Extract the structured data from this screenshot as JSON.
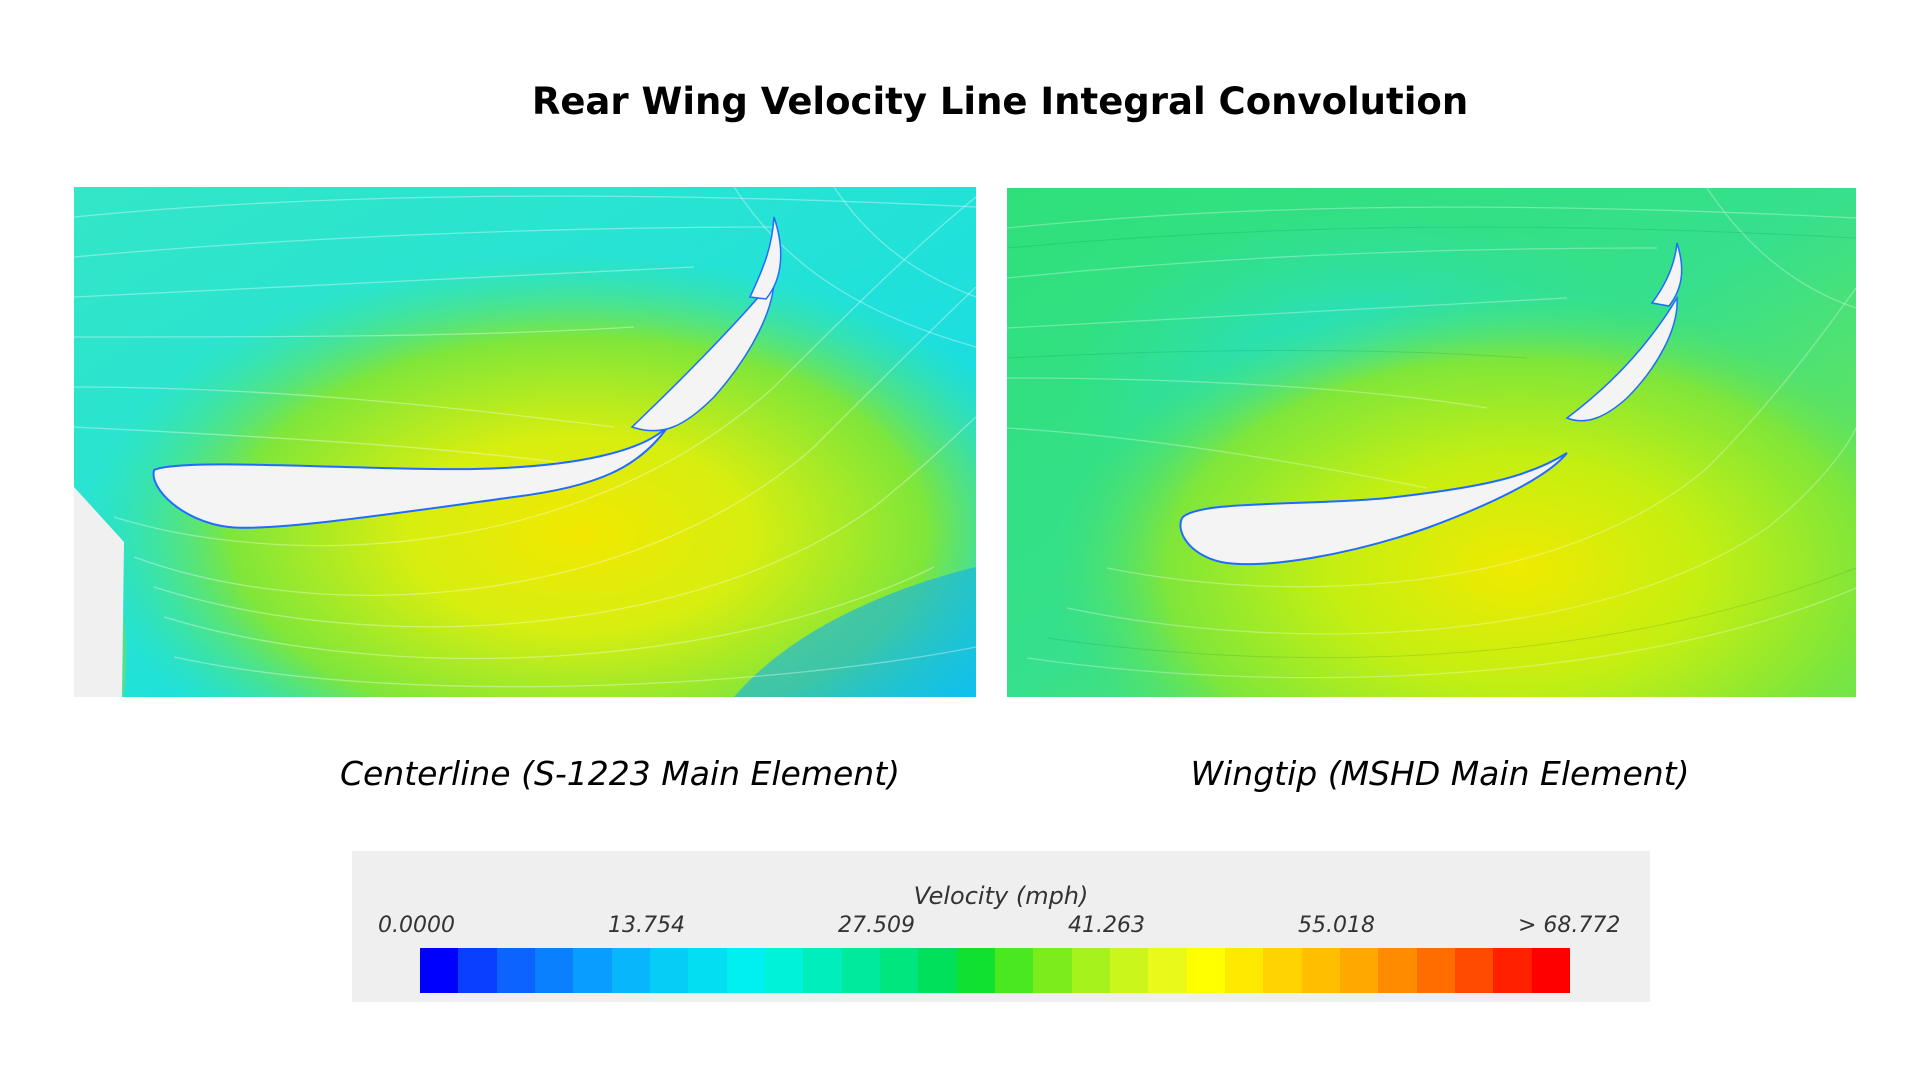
{
  "title": "Rear Wing Velocity Line Integral Convolution",
  "panels": [
    {
      "caption": "Centerline (S-1223 Main Element)"
    },
    {
      "caption": "Wingtip (MSHD Main Element)"
    }
  ],
  "legend": {
    "title": "Velocity (mph)",
    "ticks": [
      "0.0000",
      "13.754",
      "27.509",
      "41.263",
      "55.018",
      "> 68.772"
    ],
    "colors": [
      "#0000ff",
      "#0b3fff",
      "#0c63ff",
      "#0a80ff",
      "#099dff",
      "#08b6fb",
      "#05cef6",
      "#03def3",
      "#00f0f0",
      "#00f2d8",
      "#00eebb",
      "#00ea9d",
      "#00e67e",
      "#00e05a",
      "#10e030",
      "#4ae820",
      "#7ced1b",
      "#a6f21c",
      "#cbf61c",
      "#e9fa1a",
      "#ffff00",
      "#ffe900",
      "#ffd300",
      "#ffbe00",
      "#ffa800",
      "#ff8c00",
      "#ff6d00",
      "#ff4a00",
      "#ff2000",
      "#ff0000"
    ]
  }
}
